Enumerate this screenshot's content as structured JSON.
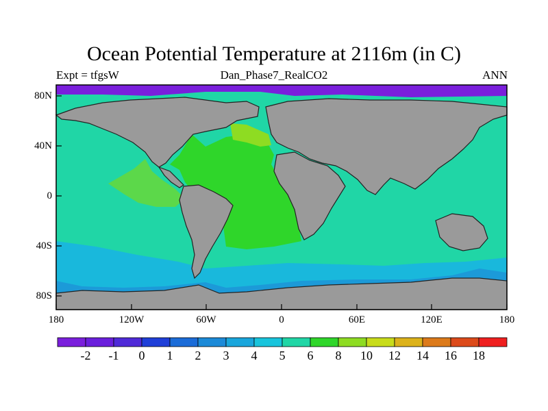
{
  "title": "Ocean Potential Temperature at 2116m (in C)",
  "left_label": "Expt = tfgsW",
  "center_label": "Dan_Phase7_RealCO2",
  "right_label": "ANN",
  "lat_ticks": [
    "80N",
    "40N",
    "0",
    "40S",
    "80S"
  ],
  "lon_ticks": [
    "180",
    "120W",
    "60W",
    "0",
    "60E",
    "120E",
    "180"
  ],
  "colorbar": {
    "labels": [
      "-2",
      "-1",
      "0",
      "1",
      "2",
      "3",
      "4",
      "5",
      "6",
      "8",
      "10",
      "12",
      "14",
      "16",
      "18"
    ],
    "colors": [
      "#7a1fdc",
      "#6a1fdc",
      "#4f2ad8",
      "#1f3fd8",
      "#1b6cd8",
      "#1c8ad8",
      "#19a6dc",
      "#18c4dc",
      "#20d6a6",
      "#2fd62a",
      "#8edc22",
      "#c8dc1a",
      "#dcb21a",
      "#dc7a1a",
      "#dc4a1a",
      "#ef1f1f"
    ]
  },
  "map_colors": {
    "land": "#9a9a9a",
    "arctic": "#7a1fdc",
    "pacific": "#20d6a6",
    "southern": "#19b8dc",
    "southern_deep": "#1c9ad8",
    "atlantic": "#2fd62a",
    "north_atlantic": "#8edc22",
    "pacific_patch": "#5cd84a"
  }
}
